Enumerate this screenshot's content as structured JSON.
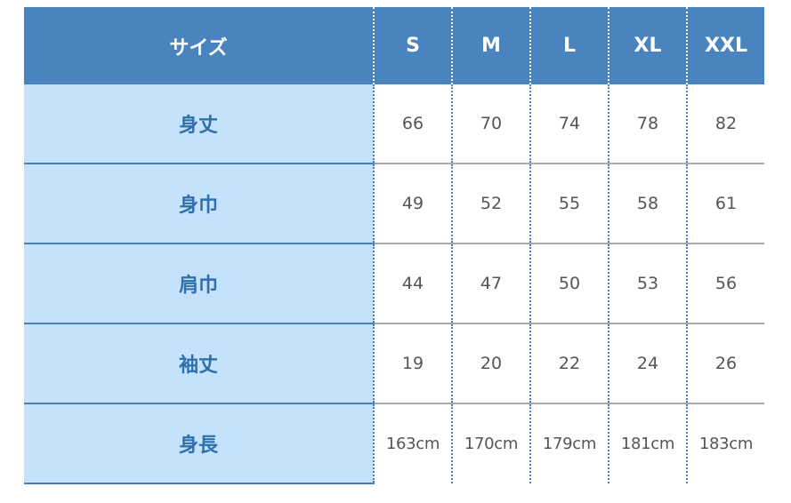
{
  "header": {
    "label": "サイズ",
    "sizes": [
      "S",
      "M",
      "L",
      "XL",
      "XXL"
    ]
  },
  "rows": [
    {
      "label": "身丈",
      "values": [
        "66",
        "70",
        "74",
        "78",
        "82"
      ]
    },
    {
      "label": "身巾",
      "values": [
        "49",
        "52",
        "55",
        "58",
        "61"
      ]
    },
    {
      "label": "肩巾",
      "values": [
        "44",
        "47",
        "50",
        "53",
        "56"
      ]
    },
    {
      "label": "袖丈",
      "values": [
        "19",
        "20",
        "22",
        "24",
        "26"
      ]
    },
    {
      "label": "身長",
      "values": [
        "163cm",
        "170cm",
        "179cm",
        "181cm",
        "183cm"
      ]
    }
  ],
  "colors": {
    "header": "#4a84bf",
    "label_bg": "#c4e2fb",
    "label_text": "#2f6fae"
  }
}
